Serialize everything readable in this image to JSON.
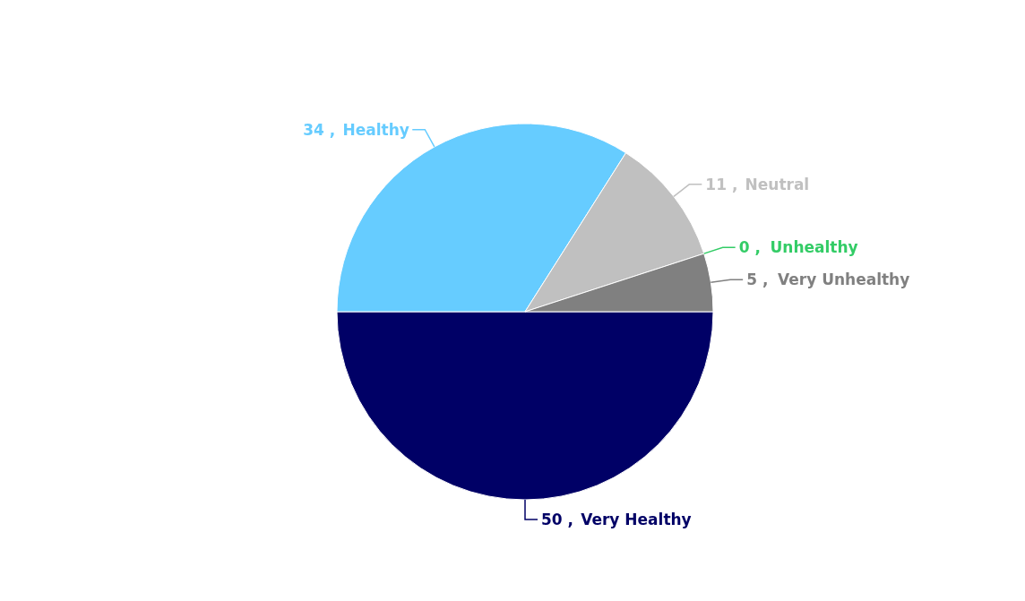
{
  "chart_data": {
    "type": "pie",
    "categories": [
      "Very Healthy",
      "Healthy",
      "Neutral",
      "Unhealthy",
      "Very Unhealthy"
    ],
    "values": [
      50,
      34,
      11,
      0,
      5
    ],
    "value_labels": [
      "50 ,",
      "34 ,",
      "11 ,",
      "0 ,",
      "5 ,"
    ],
    "colors": [
      "#000066",
      "#66ccff",
      "#c0c0c0",
      "#33cc66",
      "#808080"
    ]
  }
}
